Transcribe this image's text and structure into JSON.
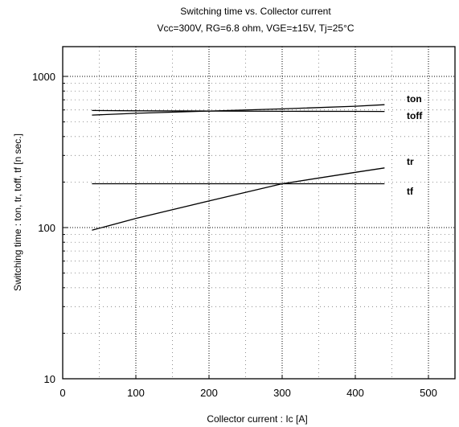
{
  "chart_data": {
    "type": "line",
    "title": "Switching time  vs. Collector current",
    "subtitle": "Vcc=300V, RG=6.8 ohm, VGE=±15V, Tj=25°C",
    "xlabel": "Collector  current  :  Ic [A]",
    "ylabel": "Switching  time  :  ton,  tr,  toff,  tf  [n sec.]",
    "xlim": [
      0,
      550
    ],
    "ylim": [
      10,
      1500
    ],
    "yscale": "log",
    "x_ticks": [
      0,
      100,
      200,
      300,
      400,
      500
    ],
    "x_tick_labels": [
      "0",
      "100",
      "200",
      "300",
      "400",
      "500"
    ],
    "y_ticks": [
      10,
      100,
      1000
    ],
    "y_tick_labels": [
      "10",
      "100",
      "1000"
    ],
    "grid": true,
    "series": [
      {
        "name": "ton",
        "x": [
          40,
          100,
          200,
          300,
          400,
          440
        ],
        "y": [
          555,
          570,
          590,
          610,
          635,
          650
        ]
      },
      {
        "name": "toff",
        "x": [
          40,
          100,
          200,
          300,
          400,
          440
        ],
        "y": [
          595,
          592,
          590,
          588,
          587,
          586
        ]
      },
      {
        "name": "tr",
        "x": [
          40,
          100,
          200,
          300,
          400,
          440
        ],
        "y": [
          96,
          115,
          150,
          195,
          232,
          248
        ]
      },
      {
        "name": "tf",
        "x": [
          40,
          100,
          200,
          300,
          400,
          440
        ],
        "y": [
          195,
          195,
          195,
          195,
          195,
          195
        ]
      }
    ]
  }
}
